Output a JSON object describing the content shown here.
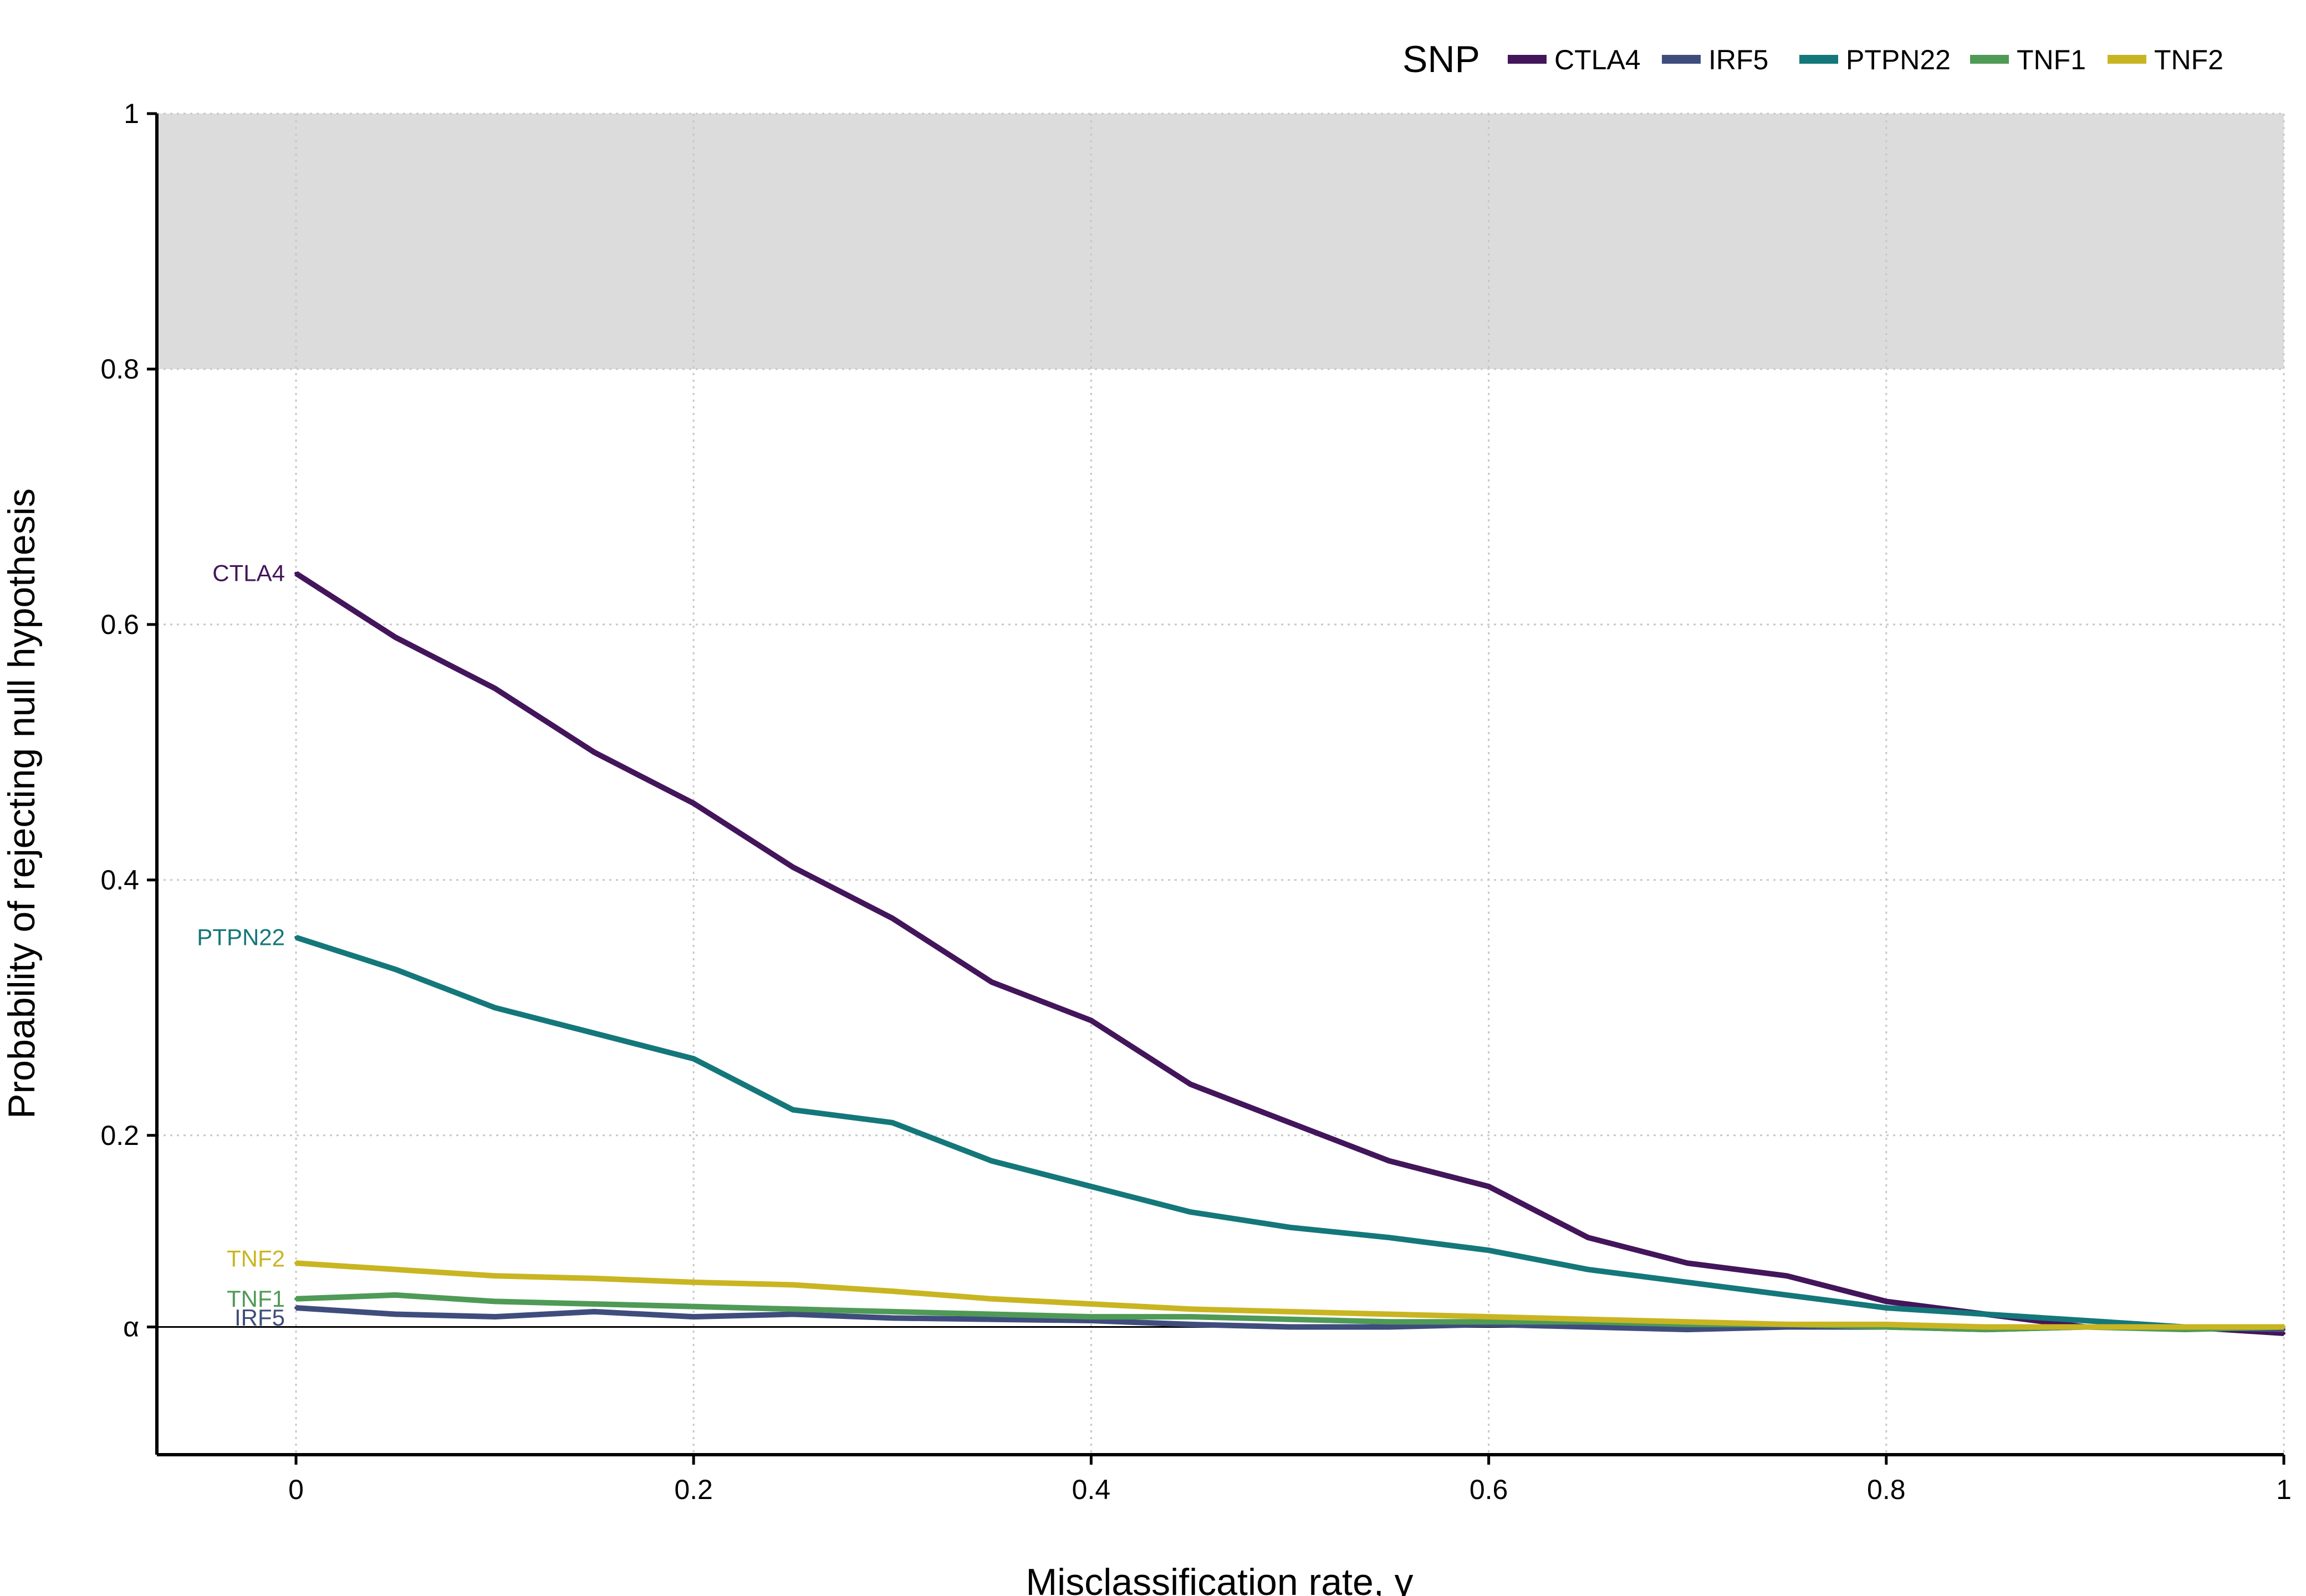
{
  "chart_data": {
    "type": "line",
    "xlabel": "Misclassification rate, γ",
    "ylabel": "Probability of rejecting null hypothesis",
    "xlim": [
      -0.07,
      1
    ],
    "ylim": [
      -0.05,
      1
    ],
    "x_ticks": [
      {
        "value": 0,
        "label": "0"
      },
      {
        "value": 0.2,
        "label": "0.2"
      },
      {
        "value": 0.4,
        "label": "0.4"
      },
      {
        "value": 0.6,
        "label": "0.6"
      },
      {
        "value": 0.8,
        "label": "0.8"
      },
      {
        "value": 1,
        "label": "1"
      }
    ],
    "y_ticks": [
      {
        "value": 0.05,
        "label": "α"
      },
      {
        "value": 0.2,
        "label": "0.2"
      },
      {
        "value": 0.4,
        "label": "0.4"
      },
      {
        "value": 0.6,
        "label": "0.6"
      },
      {
        "value": 0.8,
        "label": "0.8"
      },
      {
        "value": 1,
        "label": "1"
      }
    ],
    "grid": "dotted",
    "shaded_band": {
      "from": 0.8,
      "to": 1,
      "color": "#dcdcdc"
    },
    "reference_line": {
      "y": 0.05,
      "color": "#000000"
    },
    "legend": {
      "title": "SNP",
      "position": "top-right"
    },
    "series": [
      {
        "name": "CTLA4",
        "color": "#43155b",
        "label": "CTLA4",
        "x": [
          0,
          0.05,
          0.1,
          0.15,
          0.2,
          0.25,
          0.3,
          0.35,
          0.4,
          0.45,
          0.5,
          0.55,
          0.6,
          0.65,
          0.7,
          0.75,
          0.8,
          0.85,
          0.9,
          0.95,
          1.0
        ],
        "y": [
          0.64,
          0.59,
          0.55,
          0.5,
          0.46,
          0.41,
          0.37,
          0.32,
          0.29,
          0.24,
          0.21,
          0.18,
          0.16,
          0.12,
          0.1,
          0.09,
          0.07,
          0.06,
          0.05,
          0.05,
          0.045
        ]
      },
      {
        "name": "IRF5",
        "color": "#3f4d7d",
        "label": "IRF5",
        "x": [
          0,
          0.05,
          0.1,
          0.15,
          0.2,
          0.25,
          0.3,
          0.35,
          0.4,
          0.45,
          0.5,
          0.55,
          0.6,
          0.65,
          0.7,
          0.75,
          0.8,
          0.85,
          0.9,
          0.95,
          1.0
        ],
        "y": [
          0.065,
          0.06,
          0.058,
          0.062,
          0.058,
          0.06,
          0.057,
          0.056,
          0.055,
          0.052,
          0.05,
          0.05,
          0.052,
          0.05,
          0.048,
          0.05,
          0.05,
          0.048,
          0.05,
          0.05,
          0.048
        ]
      },
      {
        "name": "PTPN22",
        "color": "#14777a",
        "label": "PTPN22",
        "x": [
          0,
          0.05,
          0.1,
          0.15,
          0.2,
          0.25,
          0.3,
          0.35,
          0.4,
          0.45,
          0.5,
          0.55,
          0.6,
          0.65,
          0.7,
          0.75,
          0.8,
          0.85,
          0.9,
          0.95,
          1.0
        ],
        "y": [
          0.355,
          0.33,
          0.3,
          0.28,
          0.26,
          0.22,
          0.21,
          0.18,
          0.16,
          0.14,
          0.128,
          0.12,
          0.11,
          0.095,
          0.085,
          0.075,
          0.065,
          0.06,
          0.055,
          0.05,
          0.05
        ]
      },
      {
        "name": "TNF1",
        "color": "#4f9a56",
        "label": "TNF1",
        "x": [
          0,
          0.05,
          0.1,
          0.15,
          0.2,
          0.25,
          0.3,
          0.35,
          0.4,
          0.45,
          0.5,
          0.55,
          0.6,
          0.65,
          0.7,
          0.75,
          0.8,
          0.85,
          0.9,
          0.95,
          1.0
        ],
        "y": [
          0.072,
          0.075,
          0.07,
          0.068,
          0.066,
          0.064,
          0.062,
          0.06,
          0.058,
          0.058,
          0.056,
          0.054,
          0.054,
          0.054,
          0.052,
          0.052,
          0.05,
          0.048,
          0.05,
          0.048,
          0.05
        ]
      },
      {
        "name": "TNF2",
        "color": "#c9b522",
        "label": "TNF2",
        "x": [
          0,
          0.05,
          0.1,
          0.15,
          0.2,
          0.25,
          0.3,
          0.35,
          0.4,
          0.45,
          0.5,
          0.55,
          0.6,
          0.65,
          0.7,
          0.75,
          0.8,
          0.85,
          0.9,
          0.95,
          1.0
        ],
        "y": [
          0.1,
          0.095,
          0.09,
          0.088,
          0.085,
          0.083,
          0.078,
          0.072,
          0.068,
          0.064,
          0.062,
          0.06,
          0.058,
          0.056,
          0.054,
          0.052,
          0.052,
          0.05,
          0.05,
          0.05,
          0.05
        ]
      }
    ]
  }
}
